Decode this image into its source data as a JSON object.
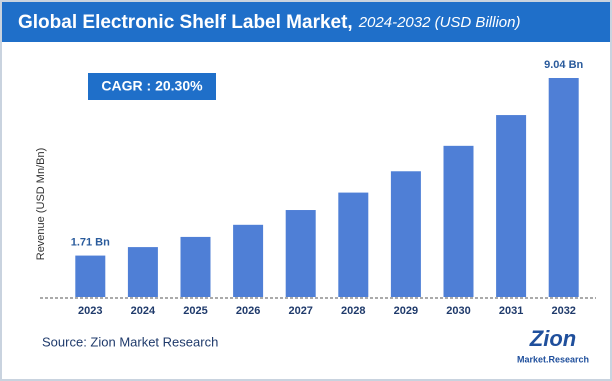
{
  "chart_data": {
    "type": "bar",
    "title": "Global Electronic Shelf Label Market,",
    "subtitle": "2024-2032 (USD Billion)",
    "annotation": "CAGR : 20.30%",
    "y_label": "Revenue (USD Mn/Bn)",
    "categories": [
      "2023",
      "2024",
      "2025",
      "2026",
      "2027",
      "2028",
      "2029",
      "2030",
      "2031",
      "2032"
    ],
    "values": [
      1.71,
      2.06,
      2.48,
      2.98,
      3.59,
      4.31,
      5.19,
      6.24,
      7.51,
      9.04
    ],
    "value_labels": [
      "1.71 Bn",
      null,
      null,
      null,
      null,
      null,
      null,
      null,
      null,
      "9.04 Bn"
    ],
    "color": "#4f7fd6",
    "source": "Source: Zion Market Research",
    "logo": {
      "name": "Zion",
      "tagline": "Market.Research"
    }
  }
}
